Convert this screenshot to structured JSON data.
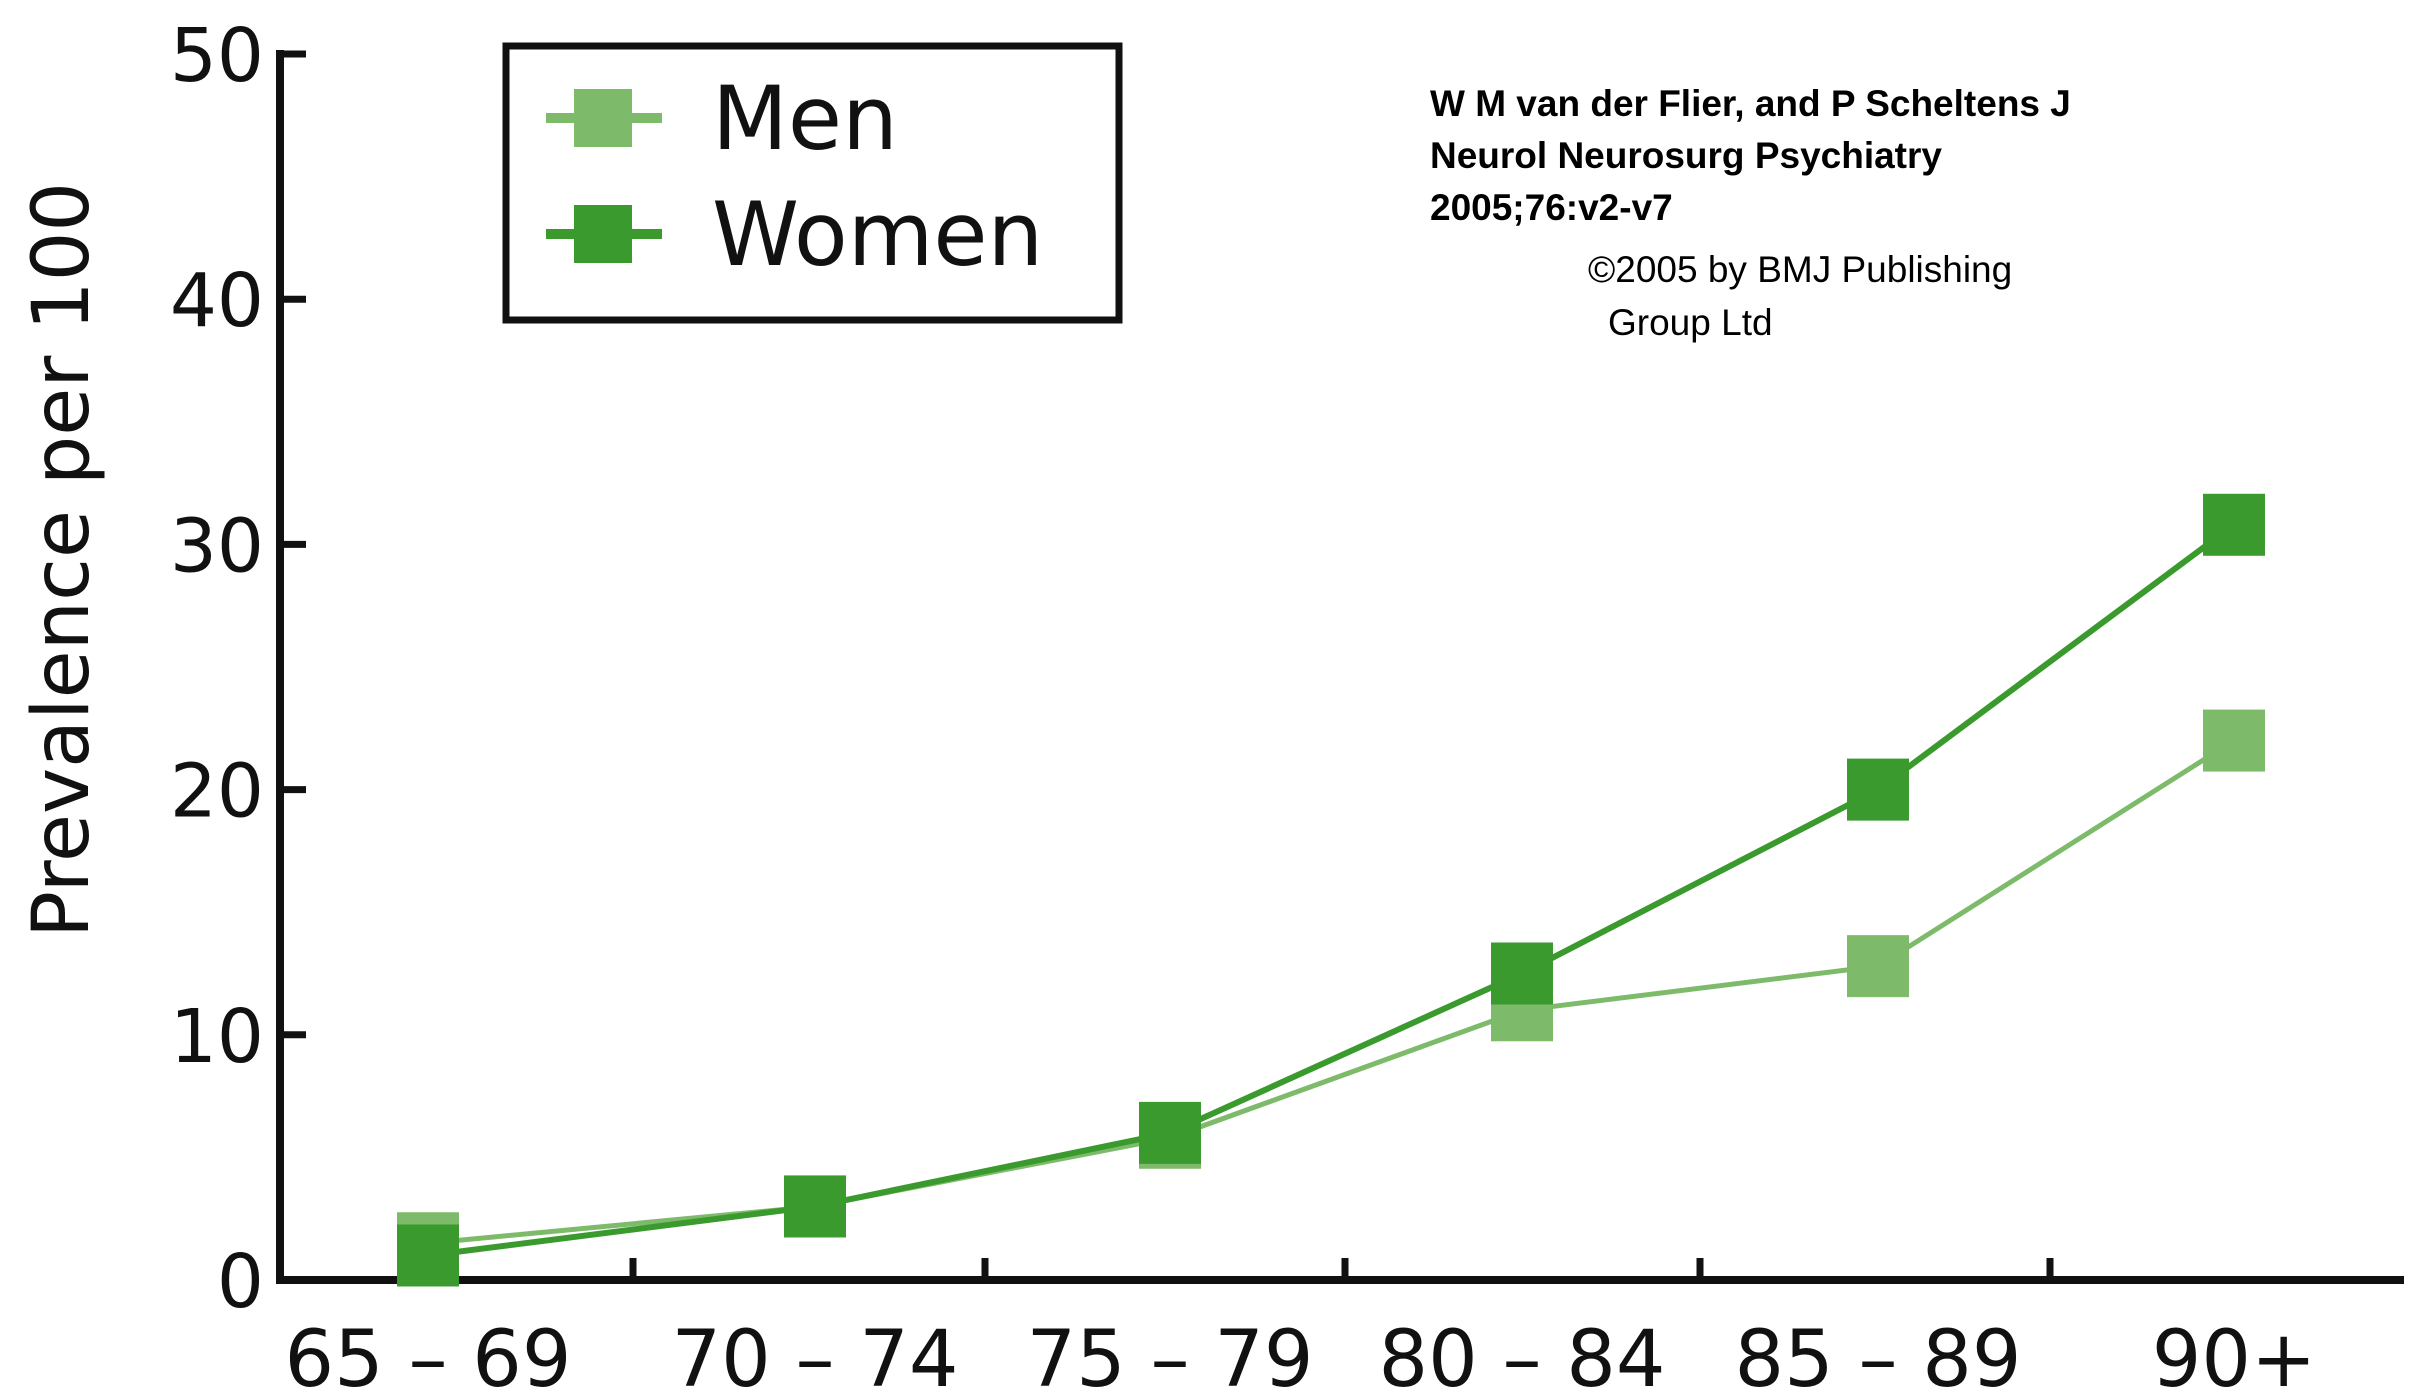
{
  "citation": {
    "line1": "W M van der Flier, and P Scheltens J",
    "line2": "Neurol Neurosurg Psychiatry",
    "line3": "2005;76:v2-v7"
  },
  "copyright": {
    "line1": "©2005 by BMJ Publishing",
    "line2": "Group Ltd"
  },
  "chart_data": {
    "type": "line",
    "title": "",
    "xlabel": "",
    "ylabel": "Prevalence per 100",
    "categories": [
      "65 – 69",
      "70 – 74",
      "75 – 79",
      "80 – 84",
      "85 – 89",
      "90+"
    ],
    "ylim": [
      0,
      50
    ],
    "yticks": [
      "0",
      "10",
      "20",
      "30",
      "40",
      "50"
    ],
    "grid": false,
    "legend_position": "top-left",
    "series": [
      {
        "name": "Men",
        "values": [
          1.5,
          3.0,
          5.8,
          11.0,
          12.8,
          22.0
        ],
        "color": "#7dbb6b"
      },
      {
        "name": "Women",
        "values": [
          1.0,
          3.0,
          6.0,
          12.5,
          20.0,
          30.8
        ],
        "color": "#3a9a2e"
      }
    ],
    "marker": "square"
  }
}
